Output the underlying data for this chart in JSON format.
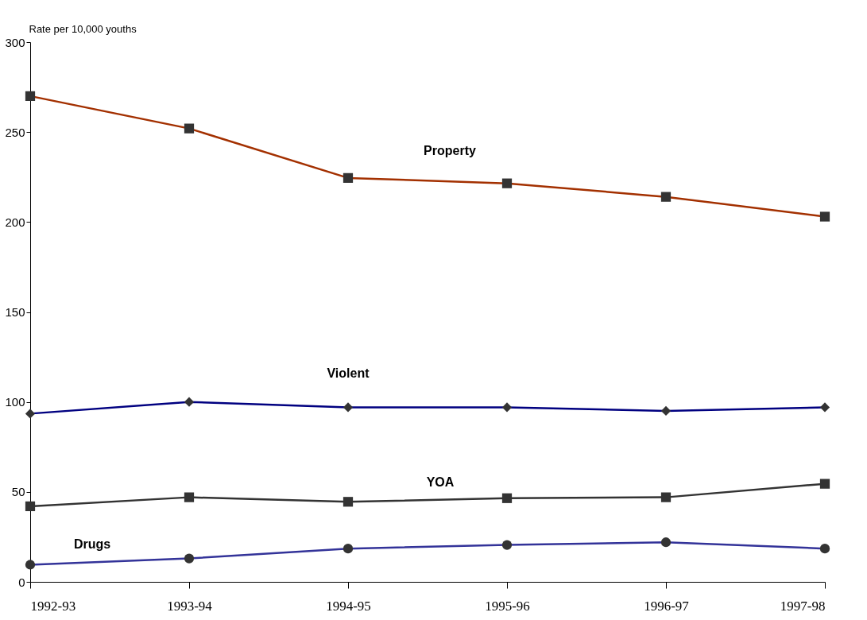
{
  "chart_data": {
    "type": "line",
    "ylabel": "Rate per 10,000 youths",
    "categories": [
      "1992-93",
      "1993-94",
      "1994-95",
      "1995-96",
      "1996-97",
      "1997-98"
    ],
    "ylim": [
      0,
      300
    ],
    "yticks": [
      0,
      50,
      100,
      150,
      200,
      250,
      300
    ],
    "grid": false,
    "series": [
      {
        "name": "Property",
        "color": "#a33000",
        "marker": "square",
        "values": [
          270,
          252,
          224.5,
          221.5,
          214,
          203
        ]
      },
      {
        "name": "Violent",
        "color": "#000080",
        "marker": "diamond",
        "values": [
          93.5,
          100,
          97,
          97,
          95,
          97
        ]
      },
      {
        "name": "YOA",
        "color": "#333333",
        "marker": "square",
        "values": [
          42,
          47,
          44.5,
          46.5,
          47,
          54.5
        ]
      },
      {
        "name": "Drugs",
        "color": "#333399",
        "marker": "circle",
        "values": [
          9.5,
          13,
          18.5,
          20.5,
          22,
          18.5
        ]
      }
    ]
  }
}
